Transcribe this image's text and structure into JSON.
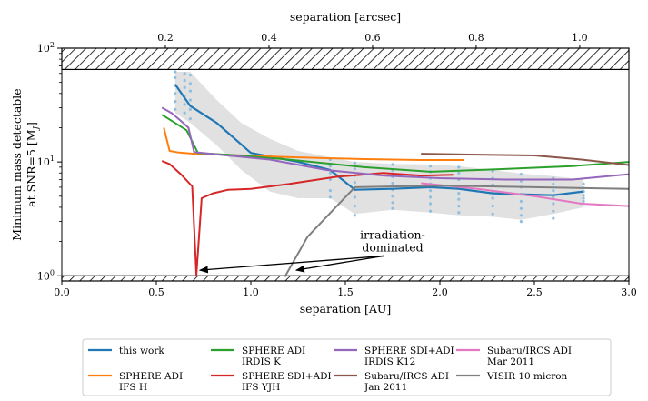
{
  "chart_data": {
    "type": "line",
    "xlabel": "separation [AU]",
    "xlim": [
      0,
      3
    ],
    "xticks": [
      0.0,
      0.5,
      1.0,
      1.5,
      2.0,
      2.5,
      3.0
    ],
    "xticklabels": [
      "0.0",
      "0.5",
      "1.0",
      "1.5",
      "2.0",
      "2.5",
      "3.0"
    ],
    "top_xlabel": "separation [arcsec]",
    "top_xticks_au": [
      0.548,
      1.096,
      1.644,
      2.192,
      2.74
    ],
    "top_xticklabels": [
      "0.2",
      "0.4",
      "0.6",
      "0.8",
      "1.0"
    ],
    "ylabel_line1": "Minimum mass detectable",
    "ylabel_line2": "at SNR=5 [M",
    "ylabel_sub": "J",
    "ylabel_end": "]",
    "yscale": "log",
    "ylim": [
      0.9,
      100
    ],
    "yticks": [
      1,
      10,
      100
    ],
    "yticklabels_base": [
      "10",
      "10",
      "10"
    ],
    "yticklabels_exp": [
      "0",
      "1",
      "2"
    ],
    "hatch_bands": [
      [
        65,
        100
      ],
      [
        0.9,
        1.0
      ]
    ],
    "shaded_region": {
      "upper": [
        [
          0.6,
          62
        ],
        [
          0.68,
          62
        ],
        [
          0.82,
          35
        ],
        [
          0.95,
          22
        ],
        [
          1.1,
          16
        ],
        [
          1.25,
          12.5
        ],
        [
          1.42,
          11
        ],
        [
          1.55,
          10
        ],
        [
          1.75,
          9.6
        ],
        [
          1.95,
          9.5
        ],
        [
          2.1,
          9.2
        ],
        [
          2.28,
          8.5
        ],
        [
          2.43,
          7.9
        ],
        [
          2.6,
          7.5
        ],
        [
          2.76,
          7.0
        ]
      ],
      "lower": [
        [
          2.76,
          4.0
        ],
        [
          2.6,
          3.5
        ],
        [
          2.43,
          3.1
        ],
        [
          2.28,
          3.3
        ],
        [
          2.1,
          3.4
        ],
        [
          1.95,
          3.6
        ],
        [
          1.75,
          3.8
        ],
        [
          1.55,
          3.5
        ],
        [
          1.42,
          4.8
        ],
        [
          1.25,
          4.8
        ],
        [
          1.1,
          5.5
        ],
        [
          0.95,
          8.5
        ],
        [
          0.82,
          14
        ],
        [
          0.68,
          22
        ],
        [
          0.6,
          27
        ]
      ]
    },
    "scatter_points": {
      "name": "this work (individual)",
      "x": [
        0.6,
        0.6,
        0.6,
        0.6,
        0.6,
        0.6,
        0.65,
        0.65,
        0.65,
        0.65,
        0.65,
        0.65,
        0.68,
        0.68,
        0.68,
        0.68,
        0.68,
        0.68,
        1.42,
        1.42,
        1.42,
        1.42,
        1.42,
        1.42,
        1.55,
        1.55,
        1.55,
        1.55,
        1.55,
        1.55,
        1.55,
        1.55,
        1.75,
        1.75,
        1.75,
        1.75,
        1.75,
        1.75,
        1.75,
        1.75,
        1.95,
        1.95,
        1.95,
        1.95,
        1.95,
        1.95,
        1.95,
        1.95,
        2.1,
        2.1,
        2.1,
        2.1,
        2.1,
        2.1,
        2.1,
        2.1,
        2.28,
        2.28,
        2.28,
        2.28,
        2.28,
        2.28,
        2.28,
        2.43,
        2.43,
        2.43,
        2.43,
        2.43,
        2.43,
        2.43,
        2.43,
        2.6,
        2.6,
        2.6,
        2.6,
        2.6,
        2.6,
        2.6,
        2.76,
        2.76,
        2.76,
        2.76,
        2.76,
        2.76
      ],
      "y": [
        62,
        55,
        47,
        40,
        34,
        29,
        60,
        52,
        45,
        38,
        32,
        27,
        58,
        49,
        42,
        35,
        29,
        24,
        10.5,
        9.2,
        8.0,
        7.0,
        5.6,
        4.9,
        9.8,
        8.7,
        7.6,
        6.6,
        5.7,
        4.9,
        4.1,
        3.4,
        9.5,
        8.4,
        7.4,
        6.5,
        5.7,
        5.0,
        4.4,
        3.9,
        9.2,
        8.2,
        7.2,
        6.4,
        5.6,
        4.9,
        4.3,
        3.7,
        9.0,
        8.0,
        7.0,
        6.1,
        5.3,
        4.7,
        4.1,
        3.6,
        8.3,
        7.2,
        6.3,
        5.5,
        4.8,
        4.1,
        3.5,
        7.8,
        6.8,
        6.0,
        5.2,
        4.5,
        3.9,
        3.4,
        3.0,
        7.2,
        6.4,
        5.6,
        4.9,
        4.3,
        3.7,
        3.2,
        6.4,
        5.9,
        5.5,
        5.1,
        4.8,
        4.5
      ],
      "color": "#8fbfe0"
    },
    "series": [
      {
        "name": "this work",
        "color": "#1f77b4",
        "x": [
          0.6,
          0.68,
          0.82,
          1.0,
          1.25,
          1.42,
          1.55,
          1.75,
          1.95,
          2.1,
          2.28,
          2.43,
          2.6,
          2.76
        ],
        "y": [
          48,
          31,
          22,
          12,
          10,
          8.5,
          5.7,
          5.8,
          6.0,
          5.8,
          5.3,
          5.2,
          5.1,
          5.5
        ]
      },
      {
        "name": "SPHERE ADI IFS H",
        "color": "#ff7f0e",
        "x": [
          0.54,
          0.57,
          0.62,
          0.7,
          0.9,
          1.15,
          1.4,
          1.6,
          1.9,
          2.13
        ],
        "y": [
          20,
          12.5,
          12.1,
          11.8,
          11.5,
          11.1,
          10.8,
          10.6,
          10.4,
          10.4
        ]
      },
      {
        "name": "SPHERE ADI IRDIS K",
        "color": "#2ca02c",
        "x": [
          0.53,
          0.6,
          0.66,
          0.72,
          0.9,
          1.2,
          1.6,
          1.95,
          2.3,
          2.7,
          3.0
        ],
        "y": [
          26,
          22,
          19,
          12,
          11.5,
          10.5,
          9,
          8.2,
          8.6,
          9.2,
          10
        ]
      },
      {
        "name": "SPHERE SDI+ADI IFS YJH",
        "color": "#d62728",
        "x": [
          0.53,
          0.57,
          0.63,
          0.69,
          0.712,
          0.74,
          0.8,
          0.88,
          1.0,
          1.2,
          1.45,
          1.7,
          1.9,
          2.07
        ],
        "y": [
          10.2,
          9.6,
          7.8,
          6.1,
          1.02,
          4.8,
          5.3,
          5.7,
          5.8,
          6.4,
          7.4,
          8.0,
          7.6,
          7.7
        ]
      },
      {
        "name": "SPHERE SDI+ADI IRDIS K12",
        "color": "#9467bd",
        "x": [
          0.53,
          0.58,
          0.63,
          0.67,
          0.7,
          0.85,
          1.1,
          1.4,
          1.7,
          2.0,
          2.35,
          2.7,
          3.0
        ],
        "y": [
          30,
          27,
          23,
          20,
          12.2,
          11.5,
          10.5,
          8.5,
          7.6,
          7.2,
          7.0,
          7.0,
          7.8
        ]
      },
      {
        "name": "Subaru/IRCS ADI Jan 2011",
        "color": "#8c564b",
        "x": [
          1.9,
          2.2,
          2.5,
          2.75,
          3.0
        ],
        "y": [
          11.8,
          11.6,
          11.4,
          10.5,
          9.4
        ]
      },
      {
        "name": "Subaru/IRCS ADI Mar 2011",
        "color": "#e377c2",
        "x": [
          1.9,
          2.2,
          2.5,
          2.75,
          3.0
        ],
        "y": [
          6.5,
          5.8,
          5.0,
          4.3,
          4.1
        ]
      },
      {
        "name": "VISIR 10 micron",
        "color": "#7f7f7f",
        "x": [
          1.18,
          1.3,
          1.55,
          2.0,
          2.5,
          3.0
        ],
        "y": [
          0.98,
          2.2,
          6.0,
          6.2,
          6.0,
          5.8
        ]
      }
    ],
    "annotation": {
      "line1": "irradiation-",
      "line2": "dominated",
      "text_anchor": [
        1.75,
        1.7
      ],
      "arrow_targets": [
        [
          0.73,
          1.12
        ],
        [
          1.24,
          1.12
        ]
      ]
    },
    "legend": {
      "placement": "bottom",
      "entries": [
        {
          "line1": "this work",
          "line2": "",
          "color": "#1f77b4"
        },
        {
          "line1": "SPHERE ADI",
          "line2": "IFS H",
          "color": "#ff7f0e"
        },
        {
          "line1": "SPHERE ADI",
          "line2": "IRDIS K",
          "color": "#2ca02c"
        },
        {
          "line1": "SPHERE SDI+ADI",
          "line2": "IFS YJH",
          "color": "#d62728"
        },
        {
          "line1": "SPHERE SDI+ADI",
          "line2": "IRDIS K12",
          "color": "#9467bd"
        },
        {
          "line1": "Subaru/IRCS ADI",
          "line2": "Jan 2011",
          "color": "#8c564b"
        },
        {
          "line1": "Subaru/IRCS ADI",
          "line2": "Mar 2011",
          "color": "#e377c2"
        },
        {
          "line1": "VISIR 10 micron",
          "line2": "",
          "color": "#7f7f7f"
        }
      ]
    }
  }
}
